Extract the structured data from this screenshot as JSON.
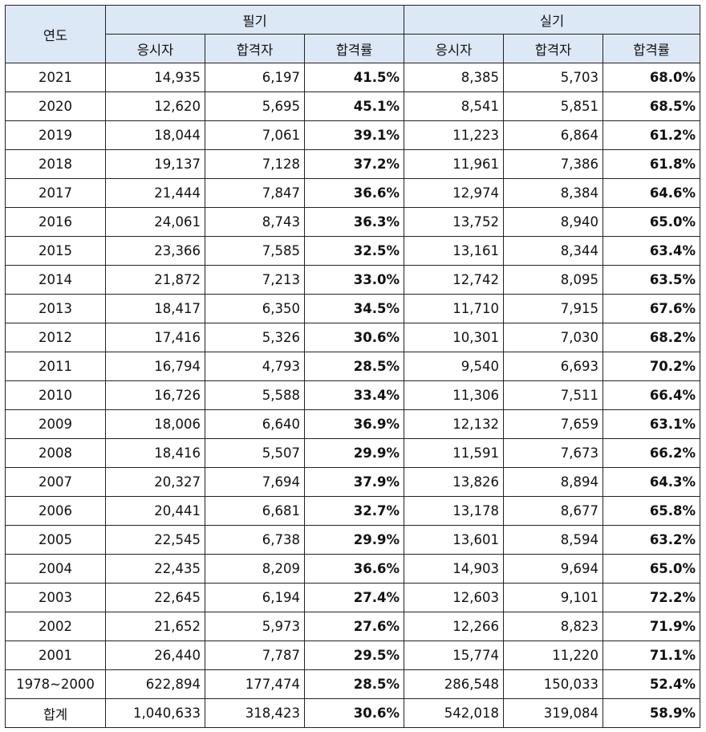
{
  "header": {
    "year_label": "연도",
    "group_written": "필기",
    "group_practical": "실기",
    "col_applicants": "응시자",
    "col_passed": "합격자",
    "col_rate": "합격률"
  },
  "rows": [
    {
      "year": "2021",
      "w_app": "14,935",
      "w_pass": "6,197",
      "w_rate": "41.5%",
      "p_app": "8,385",
      "p_pass": "5,703",
      "p_rate": "68.0%"
    },
    {
      "year": "2020",
      "w_app": "12,620",
      "w_pass": "5,695",
      "w_rate": "45.1%",
      "p_app": "8,541",
      "p_pass": "5,851",
      "p_rate": "68.5%"
    },
    {
      "year": "2019",
      "w_app": "18,044",
      "w_pass": "7,061",
      "w_rate": "39.1%",
      "p_app": "11,223",
      "p_pass": "6,864",
      "p_rate": "61.2%"
    },
    {
      "year": "2018",
      "w_app": "19,137",
      "w_pass": "7,128",
      "w_rate": "37.2%",
      "p_app": "11,961",
      "p_pass": "7,386",
      "p_rate": "61.8%"
    },
    {
      "year": "2017",
      "w_app": "21,444",
      "w_pass": "7,847",
      "w_rate": "36.6%",
      "p_app": "12,974",
      "p_pass": "8,384",
      "p_rate": "64.6%"
    },
    {
      "year": "2016",
      "w_app": "24,061",
      "w_pass": "8,743",
      "w_rate": "36.3%",
      "p_app": "13,752",
      "p_pass": "8,940",
      "p_rate": "65.0%"
    },
    {
      "year": "2015",
      "w_app": "23,366",
      "w_pass": "7,585",
      "w_rate": "32.5%",
      "p_app": "13,161",
      "p_pass": "8,344",
      "p_rate": "63.4%"
    },
    {
      "year": "2014",
      "w_app": "21,872",
      "w_pass": "7,213",
      "w_rate": "33.0%",
      "p_app": "12,742",
      "p_pass": "8,095",
      "p_rate": "63.5%"
    },
    {
      "year": "2013",
      "w_app": "18,417",
      "w_pass": "6,350",
      "w_rate": "34.5%",
      "p_app": "11,710",
      "p_pass": "7,915",
      "p_rate": "67.6%"
    },
    {
      "year": "2012",
      "w_app": "17,416",
      "w_pass": "5,326",
      "w_rate": "30.6%",
      "p_app": "10,301",
      "p_pass": "7,030",
      "p_rate": "68.2%"
    },
    {
      "year": "2011",
      "w_app": "16,794",
      "w_pass": "4,793",
      "w_rate": "28.5%",
      "p_app": "9,540",
      "p_pass": "6,693",
      "p_rate": "70.2%"
    },
    {
      "year": "2010",
      "w_app": "16,726",
      "w_pass": "5,588",
      "w_rate": "33.4%",
      "p_app": "11,306",
      "p_pass": "7,511",
      "p_rate": "66.4%"
    },
    {
      "year": "2009",
      "w_app": "18,006",
      "w_pass": "6,640",
      "w_rate": "36.9%",
      "p_app": "12,132",
      "p_pass": "7,659",
      "p_rate": "63.1%"
    },
    {
      "year": "2008",
      "w_app": "18,416",
      "w_pass": "5,507",
      "w_rate": "29.9%",
      "p_app": "11,591",
      "p_pass": "7,673",
      "p_rate": "66.2%"
    },
    {
      "year": "2007",
      "w_app": "20,327",
      "w_pass": "7,694",
      "w_rate": "37.9%",
      "p_app": "13,826",
      "p_pass": "8,894",
      "p_rate": "64.3%"
    },
    {
      "year": "2006",
      "w_app": "20,441",
      "w_pass": "6,681",
      "w_rate": "32.7%",
      "p_app": "13,178",
      "p_pass": "8,677",
      "p_rate": "65.8%"
    },
    {
      "year": "2005",
      "w_app": "22,545",
      "w_pass": "6,738",
      "w_rate": "29.9%",
      "p_app": "13,601",
      "p_pass": "8,594",
      "p_rate": "63.2%"
    },
    {
      "year": "2004",
      "w_app": "22,435",
      "w_pass": "8,209",
      "w_rate": "36.6%",
      "p_app": "14,903",
      "p_pass": "9,694",
      "p_rate": "65.0%"
    },
    {
      "year": "2003",
      "w_app": "22,645",
      "w_pass": "6,194",
      "w_rate": "27.4%",
      "p_app": "12,603",
      "p_pass": "9,101",
      "p_rate": "72.2%"
    },
    {
      "year": "2002",
      "w_app": "21,652",
      "w_pass": "5,973",
      "w_rate": "27.6%",
      "p_app": "12,266",
      "p_pass": "8,823",
      "p_rate": "71.9%"
    },
    {
      "year": "2001",
      "w_app": "26,440",
      "w_pass": "7,787",
      "w_rate": "29.5%",
      "p_app": "15,774",
      "p_pass": "11,220",
      "p_rate": "71.1%"
    },
    {
      "year": "1978~2000",
      "w_app": "622,894",
      "w_pass": "177,474",
      "w_rate": "28.5%",
      "p_app": "286,548",
      "p_pass": "150,033",
      "p_rate": "52.4%"
    },
    {
      "year": "합계",
      "w_app": "1,040,633",
      "w_pass": "318,423",
      "w_rate": "30.6%",
      "p_app": "542,018",
      "p_pass": "319,084",
      "p_rate": "58.9%"
    }
  ],
  "colors": {
    "header_bg": "#dde8f6",
    "border": "#222222"
  }
}
